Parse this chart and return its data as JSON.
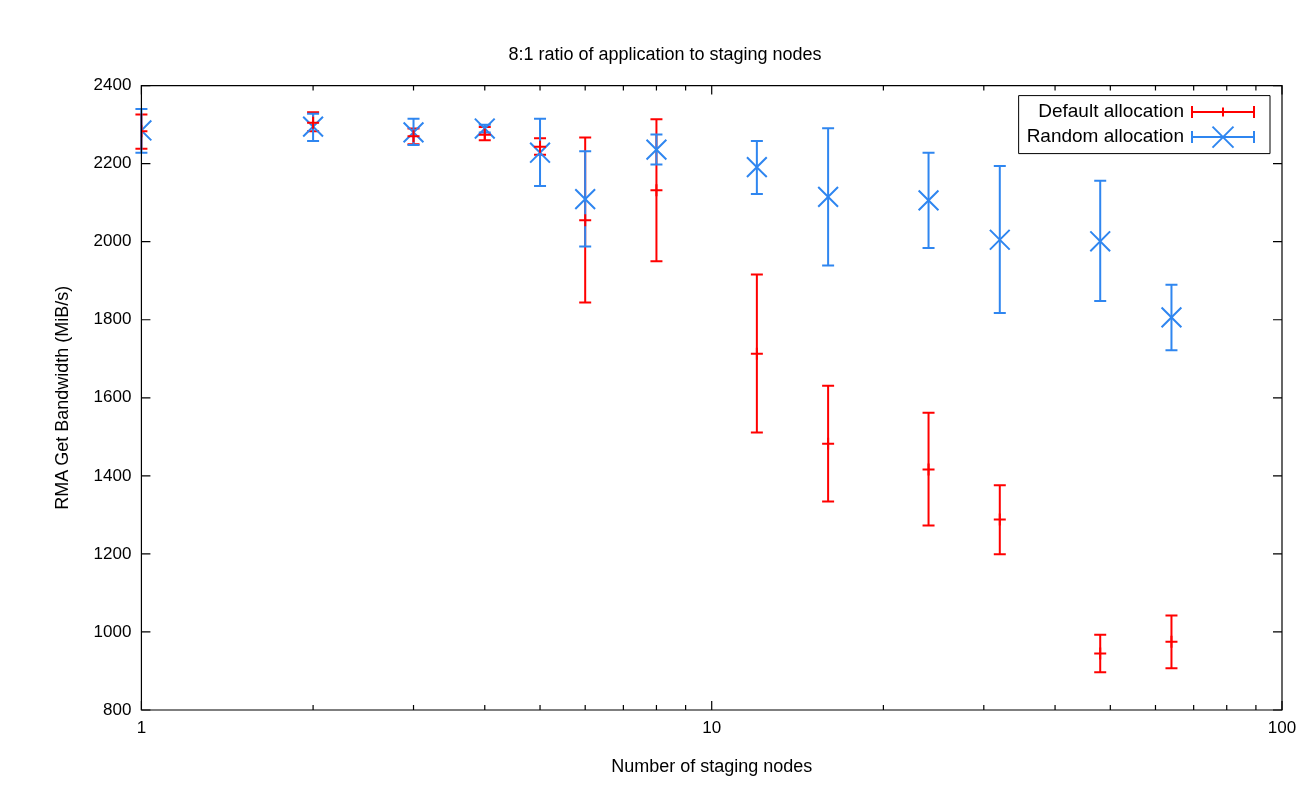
{
  "chart_data": {
    "type": "scatter",
    "title": "8:1 ratio of application to staging nodes",
    "xlabel": "Number of staging nodes",
    "ylabel": "RMA Get Bandwidth (MiB/s)",
    "x": [
      1,
      2,
      3,
      4,
      5,
      6,
      8,
      12,
      16,
      24,
      32,
      48,
      64
    ],
    "series": [
      {
        "name": "Default allocation",
        "color": "#ff0000",
        "marker": "cross",
        "values": [
          2283,
          2305,
          2270,
          2274,
          2243,
          2055,
          2132,
          1713,
          1482,
          1416,
          1288,
          945,
          975
        ],
        "errors": [
          [
            2238,
            2326
          ],
          [
            2283,
            2332
          ],
          [
            2250,
            2290
          ],
          [
            2260,
            2294
          ],
          [
            2223,
            2265
          ],
          [
            1844,
            2267
          ],
          [
            1950,
            2314
          ],
          [
            1511,
            1916
          ],
          [
            1334,
            1631
          ],
          [
            1273,
            1562
          ],
          [
            1199,
            1376
          ],
          [
            897,
            993
          ],
          [
            907,
            1042
          ]
        ]
      },
      {
        "name": "Random allocation",
        "color": "#2f86f0",
        "marker": "cross",
        "values": [
          2285,
          2295,
          2280,
          2290,
          2228,
          2109,
          2236,
          2191,
          2115,
          2106,
          2005,
          2001,
          1806
        ],
        "errors": [
          [
            2228,
            2340
          ],
          [
            2258,
            2328
          ],
          [
            2248,
            2315
          ],
          [
            2280,
            2300
          ],
          [
            2143,
            2315
          ],
          [
            1988,
            2232
          ],
          [
            2198,
            2275
          ],
          [
            2122,
            2258
          ],
          [
            1939,
            2291
          ],
          [
            1984,
            2228
          ],
          [
            1817,
            2194
          ],
          [
            1848,
            2156
          ],
          [
            1722,
            1890
          ]
        ]
      }
    ],
    "log": "x",
    "xlim": [
      1,
      100
    ],
    "ylim": [
      800,
      2400
    ],
    "xticks": [
      1,
      {
        "value": 2,
        "label": null
      },
      {
        "value": 3,
        "label": null
      },
      {
        "value": 4,
        "label": null
      },
      {
        "value": 5,
        "label": null
      },
      {
        "value": 6,
        "label": null
      },
      {
        "value": 7,
        "label": null
      },
      {
        "value": 8,
        "label": null
      },
      {
        "value": 9,
        "label": null
      },
      10,
      {
        "value": 20,
        "label": null
      },
      {
        "value": 30,
        "label": null
      },
      {
        "value": 40,
        "label": null
      },
      {
        "value": 50,
        "label": null
      },
      {
        "value": 60,
        "label": null
      },
      {
        "value": 70,
        "label": null
      },
      {
        "value": 80,
        "label": null
      },
      {
        "value": 90,
        "label": null
      },
      100
    ],
    "yticks": [
      800,
      1000,
      1200,
      1400,
      1600,
      1800,
      2000,
      2200,
      2400
    ],
    "grid": false,
    "legend": "top right"
  }
}
